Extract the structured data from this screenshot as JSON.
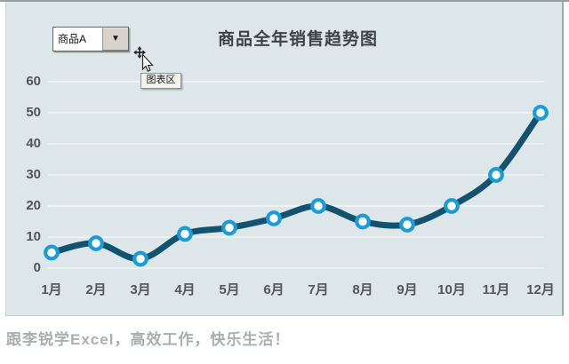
{
  "dropdown": {
    "value": "商品A",
    "arrow_icon": "▼"
  },
  "tooltip": {
    "text": "图表区"
  },
  "footer": {
    "text": "跟李锐学Excel，高效工作，快乐生活！"
  },
  "chart_data": {
    "type": "line",
    "title": "商品全年销售趋势图",
    "categories": [
      "1月",
      "2月",
      "3月",
      "4月",
      "5月",
      "6月",
      "7月",
      "8月",
      "9月",
      "10月",
      "11月",
      "12月"
    ],
    "series": [
      {
        "name": "商品A",
        "values": [
          5,
          8,
          3,
          11,
          13,
          16,
          20,
          15,
          14,
          20,
          30,
          50
        ]
      }
    ],
    "xlabel": "",
    "ylabel": "",
    "ylim": [
      0,
      60
    ],
    "ytick_step": 10,
    "grid": true,
    "legend": "none",
    "smooth": true,
    "colors": {
      "plot_bg": "#dde6e9",
      "gridline": "#f2f5f6",
      "line": "#14536f",
      "marker_ring": "#1b9cd8",
      "marker_fill": "#ffffff",
      "axis_label": "#50565a",
      "title": "#3e4346"
    }
  }
}
